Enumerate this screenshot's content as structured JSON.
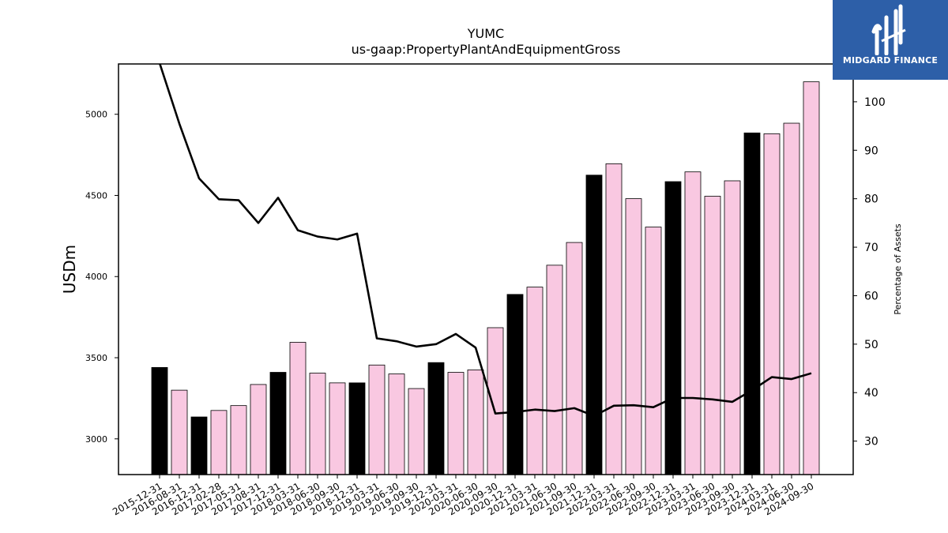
{
  "chart_data": {
    "type": "bar",
    "title": "YUMC",
    "subtitle": "us-gaap:PropertyPlantAndEquipmentGross",
    "ylabel": "USDm",
    "y2label": "Percentage of Assets",
    "ylim": [
      2780,
      5310
    ],
    "y2lim": [
      23.1,
      107.8
    ],
    "yticks": [
      3000,
      3500,
      4000,
      4500,
      5000
    ],
    "y2ticks": [
      30,
      40,
      50,
      60,
      70,
      80,
      90,
      100
    ],
    "categories": [
      "2015-12-31",
      "2016-08-31",
      "2016-12-31",
      "2017-02-28",
      "2017-05-31",
      "2017-08-31",
      "2017-12-31",
      "2018-03-31",
      "2018-06-30",
      "2018-09-30",
      "2018-12-31",
      "2019-03-31",
      "2019-06-30",
      "2019-09-30",
      "2019-12-31",
      "2020-03-31",
      "2020-06-30",
      "2020-09-30",
      "2020-12-31",
      "2021-03-31",
      "2021-06-30",
      "2021-09-30",
      "2021-12-31",
      "2022-03-31",
      "2022-06-30",
      "2022-09-30",
      "2022-12-31",
      "2023-03-31",
      "2023-06-30",
      "2023-09-30",
      "2023-12-31",
      "2024-03-31",
      "2024-06-30",
      "2024-09-30"
    ],
    "series": [
      {
        "kind": "bar",
        "values": [
          3440,
          3300,
          3135,
          3175,
          3205,
          3335,
          3410,
          3595,
          3405,
          3345,
          3345,
          3455,
          3400,
          3310,
          3470,
          3410,
          3425,
          3685,
          3890,
          3935,
          4070,
          4210,
          4625,
          4695,
          4480,
          4305,
          4585,
          4645,
          4495,
          4590,
          4885,
          4880,
          4945,
          5200
        ],
        "annual": [
          true,
          false,
          true,
          false,
          false,
          false,
          true,
          false,
          false,
          false,
          true,
          false,
          false,
          false,
          true,
          false,
          false,
          false,
          true,
          false,
          false,
          false,
          true,
          false,
          false,
          false,
          true,
          false,
          false,
          false,
          true,
          false,
          false,
          false
        ]
      },
      {
        "kind": "line",
        "axis": "right",
        "values": [
          108,
          95.5,
          84.2,
          79.9,
          79.7,
          75,
          80.2,
          73.5,
          72.2,
          71.6,
          72.8,
          51.2,
          50.6,
          49.5,
          50,
          52.1,
          49.3,
          35.7,
          36,
          36.5,
          36.2,
          36.8,
          35.2,
          37.3,
          37.4,
          37,
          38.9,
          38.9,
          38.6,
          38.1,
          40.5,
          43.2,
          42.8,
          44
        ]
      }
    ],
    "colors": {
      "annual_bar": "#000000",
      "quarter_bar": "#f9c8e1",
      "bar_edge": "#000000",
      "line": "#000000"
    }
  },
  "logo": {
    "text": "MIDGARD FINANCE",
    "icon": "midgard-logo-icon"
  }
}
